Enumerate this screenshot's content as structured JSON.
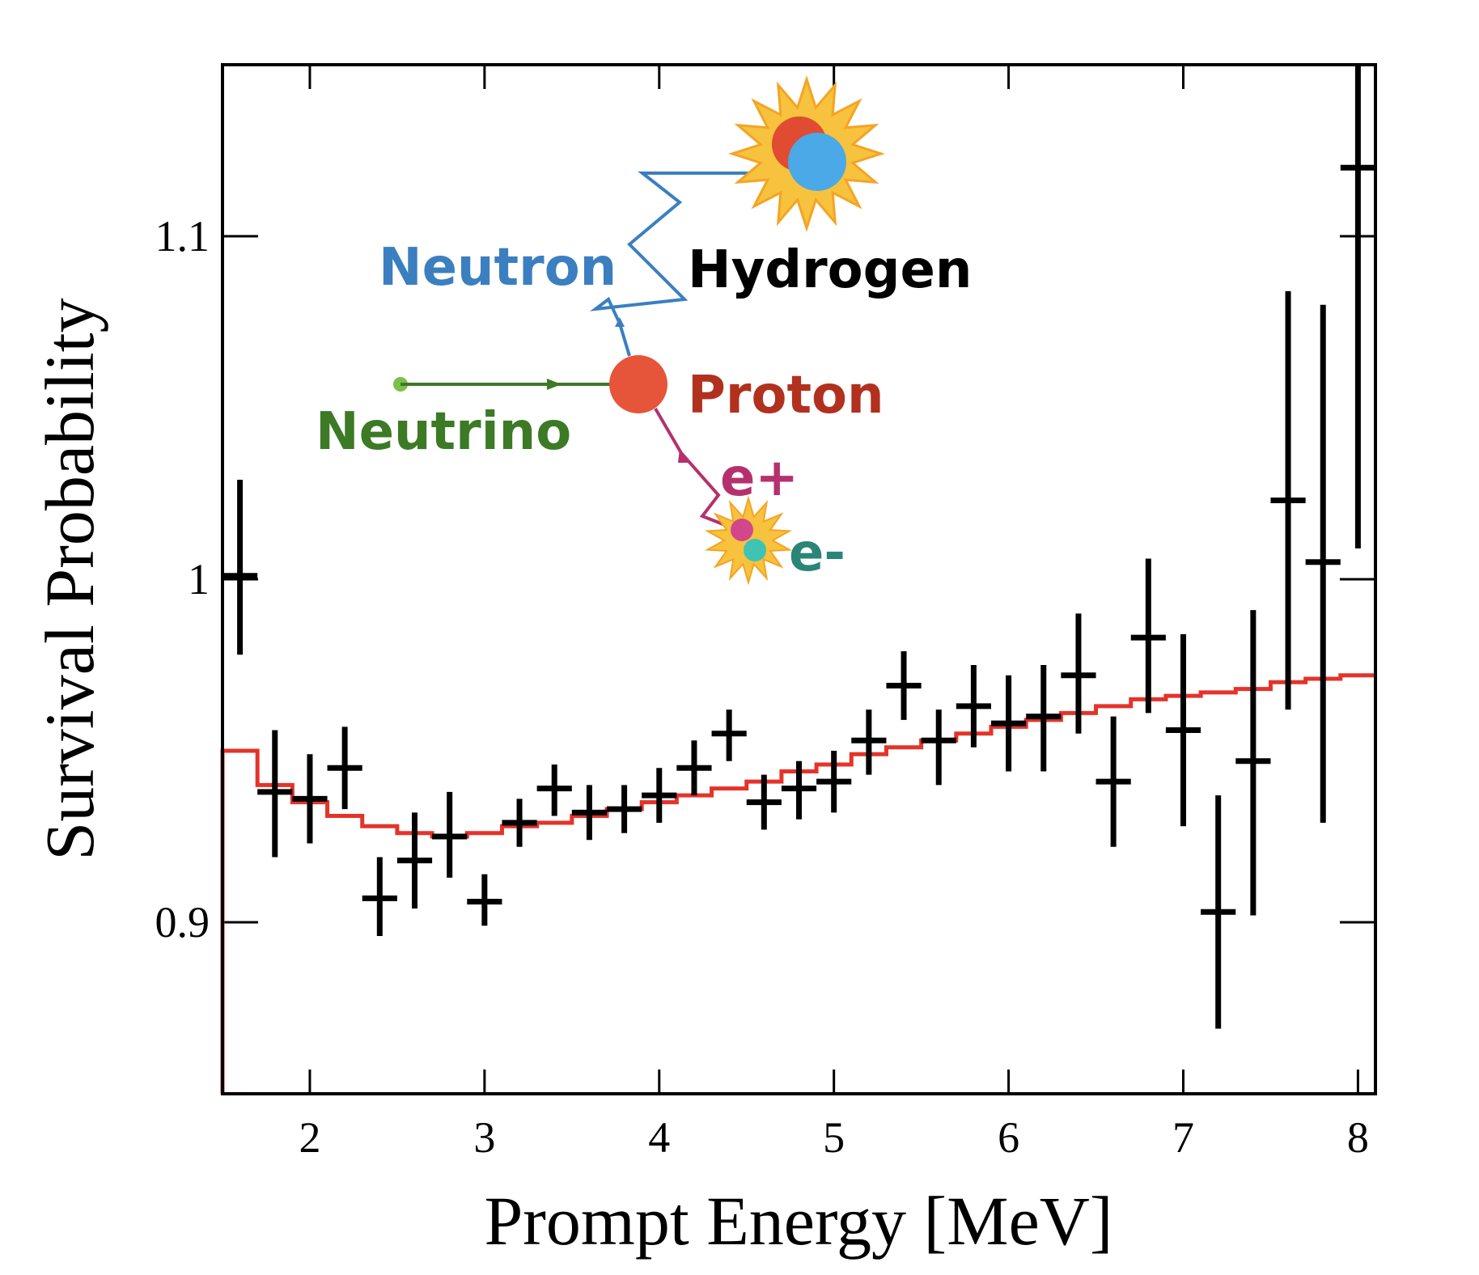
{
  "chart_data": {
    "type": "scatter",
    "xlabel": "Prompt Energy [MeV]",
    "ylabel": "Survival Probability",
    "xlim": [
      1.5,
      8.1
    ],
    "ylim": [
      0.85,
      1.15
    ],
    "x_ticks": [
      "2",
      "3",
      "4",
      "5",
      "6",
      "7",
      "8"
    ],
    "y_ticks": [
      "0.9",
      "1",
      "1.1"
    ],
    "legend": "none",
    "grid": false,
    "series": [
      {
        "type": "scatter-errorbar",
        "color": "#000000",
        "points": [
          {
            "x": 1.6,
            "y": 1.001,
            "ylo": 0.978,
            "yhi": 1.029,
            "xerr": 0.1
          },
          {
            "x": 1.8,
            "y": 0.938,
            "ylo": 0.919,
            "yhi": 0.956,
            "xerr": 0.1
          },
          {
            "x": 2.0,
            "y": 0.936,
            "ylo": 0.923,
            "yhi": 0.949,
            "xerr": 0.1
          },
          {
            "x": 2.2,
            "y": 0.945,
            "ylo": 0.933,
            "yhi": 0.957,
            "xerr": 0.1
          },
          {
            "x": 2.4,
            "y": 0.907,
            "ylo": 0.896,
            "yhi": 0.919,
            "xerr": 0.1
          },
          {
            "x": 2.6,
            "y": 0.918,
            "ylo": 0.904,
            "yhi": 0.932,
            "xerr": 0.1
          },
          {
            "x": 2.8,
            "y": 0.925,
            "ylo": 0.913,
            "yhi": 0.938,
            "xerr": 0.1
          },
          {
            "x": 3.0,
            "y": 0.906,
            "ylo": 0.899,
            "yhi": 0.914,
            "xerr": 0.1
          },
          {
            "x": 3.2,
            "y": 0.929,
            "ylo": 0.922,
            "yhi": 0.936,
            "xerr": 0.1
          },
          {
            "x": 3.4,
            "y": 0.939,
            "ylo": 0.931,
            "yhi": 0.946,
            "xerr": 0.1
          },
          {
            "x": 3.6,
            "y": 0.932,
            "ylo": 0.924,
            "yhi": 0.94,
            "xerr": 0.1
          },
          {
            "x": 3.8,
            "y": 0.933,
            "ylo": 0.926,
            "yhi": 0.94,
            "xerr": 0.1
          },
          {
            "x": 4.0,
            "y": 0.937,
            "ylo": 0.929,
            "yhi": 0.945,
            "xerr": 0.1
          },
          {
            "x": 4.2,
            "y": 0.945,
            "ylo": 0.937,
            "yhi": 0.953,
            "xerr": 0.1
          },
          {
            "x": 4.4,
            "y": 0.955,
            "ylo": 0.947,
            "yhi": 0.962,
            "xerr": 0.1
          },
          {
            "x": 4.6,
            "y": 0.935,
            "ylo": 0.927,
            "yhi": 0.943,
            "xerr": 0.1
          },
          {
            "x": 4.8,
            "y": 0.939,
            "ylo": 0.93,
            "yhi": 0.947,
            "xerr": 0.1
          },
          {
            "x": 5.0,
            "y": 0.941,
            "ylo": 0.932,
            "yhi": 0.95,
            "xerr": 0.1
          },
          {
            "x": 5.2,
            "y": 0.953,
            "ylo": 0.943,
            "yhi": 0.962,
            "xerr": 0.1
          },
          {
            "x": 5.4,
            "y": 0.969,
            "ylo": 0.959,
            "yhi": 0.979,
            "xerr": 0.1
          },
          {
            "x": 5.6,
            "y": 0.953,
            "ylo": 0.94,
            "yhi": 0.962,
            "xerr": 0.1
          },
          {
            "x": 5.8,
            "y": 0.963,
            "ylo": 0.951,
            "yhi": 0.975,
            "xerr": 0.1
          },
          {
            "x": 6.0,
            "y": 0.958,
            "ylo": 0.944,
            "yhi": 0.972,
            "xerr": 0.1
          },
          {
            "x": 6.2,
            "y": 0.96,
            "ylo": 0.944,
            "yhi": 0.975,
            "xerr": 0.1
          },
          {
            "x": 6.4,
            "y": 0.972,
            "ylo": 0.955,
            "yhi": 0.99,
            "xerr": 0.1
          },
          {
            "x": 6.6,
            "y": 0.941,
            "ylo": 0.922,
            "yhi": 0.96,
            "xerr": 0.1
          },
          {
            "x": 6.8,
            "y": 0.983,
            "ylo": 0.961,
            "yhi": 1.006,
            "xerr": 0.1
          },
          {
            "x": 7.0,
            "y": 0.956,
            "ylo": 0.928,
            "yhi": 0.984,
            "xerr": 0.1
          },
          {
            "x": 7.2,
            "y": 0.903,
            "ylo": 0.869,
            "yhi": 0.937,
            "xerr": 0.1
          },
          {
            "x": 7.4,
            "y": 0.947,
            "ylo": 0.902,
            "yhi": 0.991,
            "xerr": 0.1
          },
          {
            "x": 7.6,
            "y": 1.023,
            "ylo": 0.962,
            "yhi": 1.084,
            "xerr": 0.1
          },
          {
            "x": 7.8,
            "y": 1.005,
            "ylo": 0.929,
            "yhi": 1.08,
            "xerr": 0.1
          },
          {
            "x": 8.0,
            "y": 1.12,
            "ylo": 1.009,
            "yhi": 1.15,
            "xerr": 0.1
          }
        ]
      },
      {
        "type": "step",
        "color": "#e4332a",
        "left_edge_from_y": 0.85,
        "edges": [
          1.5,
          1.7,
          1.9,
          2.1,
          2.3,
          2.5,
          2.7,
          2.9,
          3.1,
          3.3,
          3.5,
          3.7,
          3.9,
          4.1,
          4.3,
          4.5,
          4.7,
          4.9,
          5.1,
          5.3,
          5.5,
          5.7,
          5.9,
          6.1,
          6.3,
          6.5,
          6.7,
          6.9,
          7.1,
          7.3,
          7.5,
          7.7,
          7.9,
          8.1
        ],
        "values": [
          0.95,
          0.94,
          0.935,
          0.931,
          0.928,
          0.926,
          0.925,
          0.926,
          0.928,
          0.929,
          0.931,
          0.933,
          0.935,
          0.937,
          0.939,
          0.941,
          0.944,
          0.946,
          0.949,
          0.951,
          0.953,
          0.955,
          0.957,
          0.959,
          0.961,
          0.963,
          0.965,
          0.966,
          0.967,
          0.968,
          0.97,
          0.971,
          0.972
        ]
      }
    ],
    "annotations": {
      "neutron": "Neutron",
      "hydrogen": "Hydrogen",
      "proton": "Proton",
      "neutrino": "Neutrino",
      "positron": "e+",
      "electron": "e-",
      "colors": {
        "neutron": "#3b7fc0",
        "hydrogen": "#000000",
        "proton": "#b2301e",
        "neutrino": "#3c7a25",
        "positron": "#b5316e",
        "electron": "#2a8577",
        "proton_ball": "#e6543a",
        "neutron_ball": "#4aa9e6",
        "starburst": "#f7c23d"
      }
    }
  }
}
